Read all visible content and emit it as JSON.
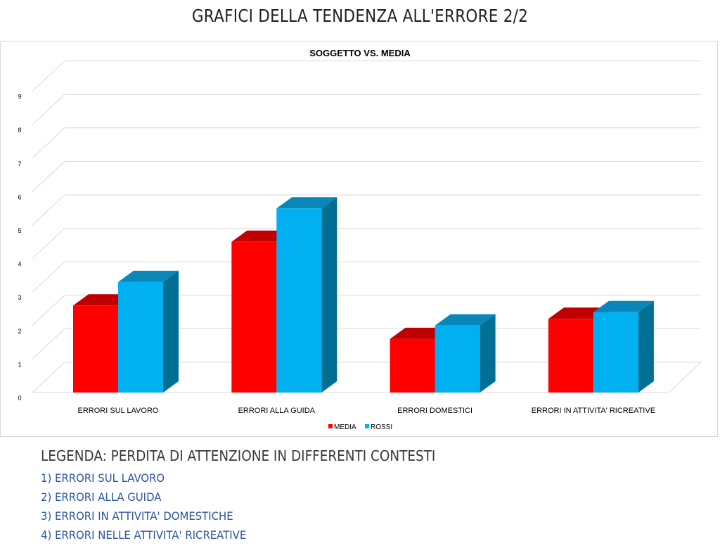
{
  "page_title": "GRAFICI DELLA TENDENZA ALL'ERRORE 2/2",
  "chart_data": {
    "type": "bar",
    "title": "SOGGETTO VS. MEDIA",
    "xlabel": "",
    "ylabel": "",
    "categories": [
      "ERRORI SUL LAVORO",
      "ERRORI ALLA GUIDA",
      "ERRORI DOMESTICI",
      "ERRORI IN ATTIVITA' RICREATIVE"
    ],
    "series": [
      {
        "name": "MEDIA",
        "values": [
          2.6,
          4.5,
          1.6,
          2.2
        ],
        "color": "#ff0000",
        "top_color": "#c00000",
        "side_color": "#b80000"
      },
      {
        "name": "ROSSI",
        "values": [
          3.3,
          5.5,
          2.0,
          2.4
        ],
        "color": "#00b0f0",
        "top_color": "#0a86b8",
        "side_color": "#006f93"
      }
    ],
    "yticks": [
      0,
      1,
      2,
      3,
      4,
      5,
      6,
      7,
      8,
      9
    ],
    "ylim": [
      0,
      9.5
    ],
    "grid": true,
    "style": "3d-clustered-column",
    "legend_position": "bottom"
  },
  "legend": {
    "heading": "LEGENDA: PERDITA DI ATTENZIONE IN DIFFERENTI CONTESTI",
    "items": [
      "1) ERRORI SUL LAVORO",
      "2) ERRORI ALLA GUIDA",
      "3) ERRORI IN ATTIVITA' DOMESTICHE",
      "4) ERRORI NELLE ATTIVITA' RICREATIVE"
    ]
  }
}
